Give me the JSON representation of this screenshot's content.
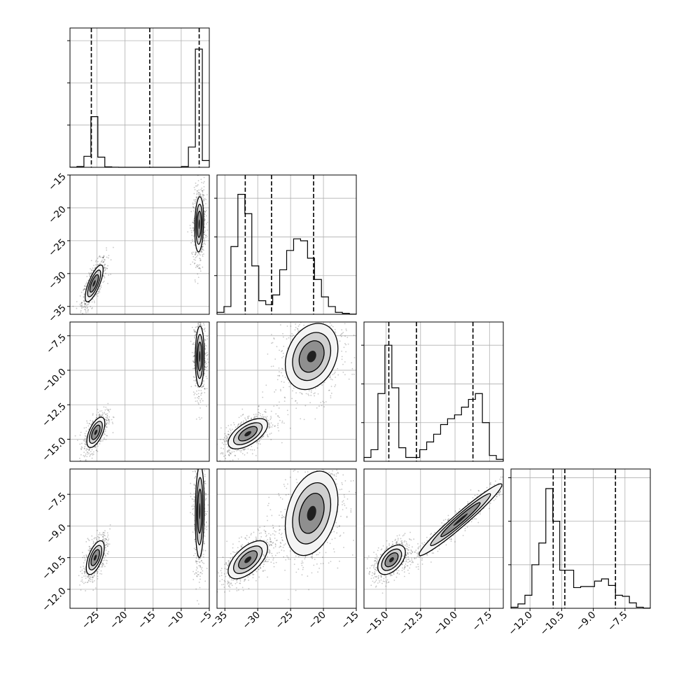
{
  "chart_data": {
    "type": "corner",
    "colors": {
      "ink": "#000000",
      "grid": "#b0b0b0",
      "background": "#ffffff"
    },
    "params": [
      {
        "range": [
          -29.8,
          -5
        ],
        "ticks": [
          -25,
          -20,
          -15,
          -10,
          -5
        ],
        "tick_labels": [
          "−25",
          "−20",
          "−15",
          "−10",
          "−5"
        ],
        "quantiles": [
          -26.0,
          -15.6,
          -6.8
        ]
      },
      {
        "range": [
          -36.2,
          -15
        ],
        "ticks": [
          -35,
          -30,
          -25,
          -20,
          -15
        ],
        "tick_labels": [
          "−35",
          "−30",
          "−25",
          "−20",
          "−15"
        ],
        "quantiles": [
          -31.9,
          -27.9,
          -21.5
        ]
      },
      {
        "range": [
          -16.6,
          -6.5
        ],
        "ticks": [
          -15.0,
          -12.5,
          -10.0,
          -7.5
        ],
        "tick_labels": [
          "−15.0",
          "−12.5",
          "−10.0",
          "−7.5"
        ],
        "quantiles": [
          -14.8,
          -12.8,
          -8.7
        ]
      },
      {
        "range": [
          -12.9,
          -6.3
        ],
        "ticks": [
          -12.0,
          -10.5,
          -9.0,
          -7.5
        ],
        "tick_labels": [
          "−12.0",
          "−10.5",
          "−9.0",
          "−7.5"
        ],
        "quantiles": [
          -10.9,
          -10.35,
          -7.95
        ]
      }
    ],
    "histograms": [
      {
        "bin_edges": [
          -29.8,
          -28.56,
          -27.32,
          -26.08,
          -24.84,
          -23.6,
          -22.36,
          -21.12,
          -19.88,
          -18.64,
          -17.4,
          -16.16,
          -14.92,
          -13.68,
          -12.44,
          -11.2,
          -9.96,
          -8.72,
          -7.48,
          -6.24,
          -5.0
        ],
        "counts": [
          1,
          10,
          130,
          600,
          120,
          5,
          1,
          0,
          0,
          0,
          0,
          0,
          0,
          0,
          0,
          0,
          10,
          240,
          1400,
          80
        ],
        "ymax": 1650
      },
      {
        "bin_edges": [
          -36.2,
          -35.14,
          -34.08,
          -33.02,
          -31.96,
          -30.9,
          -29.84,
          -28.78,
          -27.72,
          -26.66,
          -25.6,
          -24.54,
          -23.48,
          -22.42,
          -21.36,
          -20.3,
          -19.24,
          -18.18,
          -17.12,
          -16.06,
          -15.0
        ],
        "counts": [
          10,
          40,
          350,
          620,
          520,
          250,
          70,
          50,
          100,
          230,
          330,
          390,
          380,
          290,
          180,
          90,
          40,
          10,
          5,
          1
        ],
        "ymax": 720
      },
      {
        "bin_edges": [
          -16.6,
          -16.095,
          -15.59,
          -15.085,
          -14.58,
          -14.075,
          -13.57,
          -13.065,
          -12.56,
          -12.055,
          -11.55,
          -11.045,
          -10.54,
          -10.035,
          -9.53,
          -9.025,
          -8.52,
          -8.015,
          -7.51,
          -7.005,
          -6.5
        ],
        "counts": [
          20,
          60,
          350,
          600,
          380,
          70,
          20,
          20,
          60,
          100,
          140,
          190,
          220,
          240,
          280,
          320,
          350,
          200,
          30,
          10
        ],
        "ymax": 720
      },
      {
        "bin_edges": [
          -12.9,
          -12.57,
          -12.24,
          -11.91,
          -11.58,
          -11.25,
          -10.92,
          -10.59,
          -10.26,
          -9.93,
          -9.6,
          -9.27,
          -8.94,
          -8.61,
          -8.28,
          -7.95,
          -7.62,
          -7.29,
          -6.96,
          -6.63,
          -6.3
        ],
        "counts": [
          5,
          20,
          60,
          200,
          300,
          550,
          400,
          175,
          175,
          95,
          100,
          100,
          125,
          135,
          105,
          60,
          55,
          25,
          5,
          1
        ],
        "ymax": 640
      }
    ]
  }
}
